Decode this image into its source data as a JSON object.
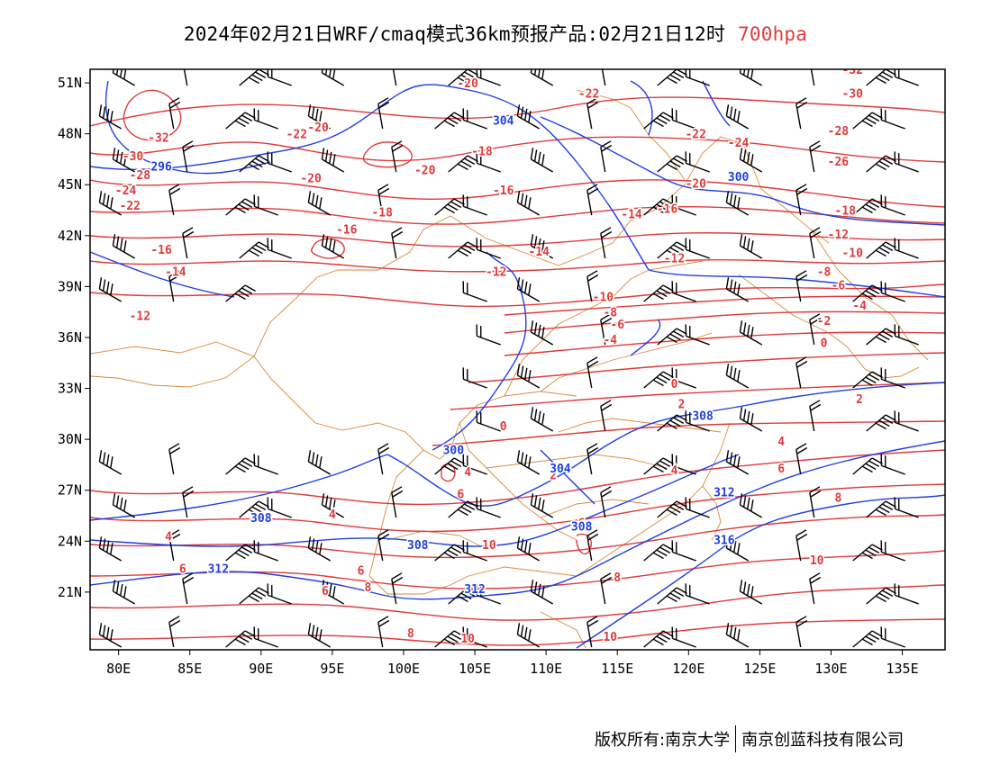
{
  "header": {
    "title": "2024年02月21日WRF/cmaq模式36km预报产品:02月21日12时",
    "level": "700hpa"
  },
  "map": {
    "lon_range": [
      78,
      138
    ],
    "lat_range": [
      17.6,
      51.8
    ],
    "lon_ticks": [
      "80E",
      "85E",
      "90E",
      "95E",
      "100E",
      "105E",
      "110E",
      "115E",
      "120E",
      "125E",
      "130E",
      "135E"
    ],
    "lat_ticks": [
      "51N",
      "48N",
      "45N",
      "42N",
      "39N",
      "36N",
      "33N",
      "30N",
      "27N",
      "24N",
      "21N"
    ],
    "height_contour_color": "#1f3fe0",
    "temperature_contour_color": "#e03a3a",
    "boundary_color": "#d98a3a",
    "height_labels": [
      {
        "text": "304",
        "lon": 107,
        "lat": 48.8
      },
      {
        "text": "300",
        "lon": 123.5,
        "lat": 45.5
      },
      {
        "text": "296",
        "lon": 83,
        "lat": 46.1
      },
      {
        "text": "300",
        "lon": 103.5,
        "lat": 29.4
      },
      {
        "text": "304",
        "lon": 111,
        "lat": 28.3
      },
      {
        "text": "308",
        "lon": 121,
        "lat": 31.4
      },
      {
        "text": "312",
        "lon": 122.5,
        "lat": 26.9
      },
      {
        "text": "308",
        "lon": 90,
        "lat": 25.4
      },
      {
        "text": "308",
        "lon": 112.5,
        "lat": 24.9
      },
      {
        "text": "308",
        "lon": 101,
        "lat": 23.8
      },
      {
        "text": "316",
        "lon": 122.5,
        "lat": 24.1
      },
      {
        "text": "312",
        "lon": 87,
        "lat": 22.4
      },
      {
        "text": "312",
        "lon": 105,
        "lat": 21.2
      }
    ],
    "temperature_labels": [
      {
        "text": "-32",
        "lon": 82.8,
        "lat": 47.8
      },
      {
        "text": "-30",
        "lon": 81,
        "lat": 46.7
      },
      {
        "text": "-28",
        "lon": 81.5,
        "lat": 45.6
      },
      {
        "text": "-24",
        "lon": 80.5,
        "lat": 44.7
      },
      {
        "text": "-22",
        "lon": 80.8,
        "lat": 43.8
      },
      {
        "text": "-22",
        "lon": 92.5,
        "lat": 48.0
      },
      {
        "text": "-20",
        "lon": 94,
        "lat": 48.4
      },
      {
        "text": "-20",
        "lon": 104.5,
        "lat": 51.0
      },
      {
        "text": "-22",
        "lon": 113,
        "lat": 50.4
      },
      {
        "text": "-18",
        "lon": 105.5,
        "lat": 47.0
      },
      {
        "text": "-20",
        "lon": 101.5,
        "lat": 45.9
      },
      {
        "text": "-20",
        "lon": 93.5,
        "lat": 45.4
      },
      {
        "text": "-16",
        "lon": 107,
        "lat": 44.7
      },
      {
        "text": "-18",
        "lon": 98.5,
        "lat": 43.4
      },
      {
        "text": "-16",
        "lon": 96,
        "lat": 42.4
      },
      {
        "text": "-16",
        "lon": 83,
        "lat": 41.2
      },
      {
        "text": "-14",
        "lon": 84,
        "lat": 39.9
      },
      {
        "text": "-12",
        "lon": 81.5,
        "lat": 37.3
      },
      {
        "text": "-22",
        "lon": 120.5,
        "lat": 48.0
      },
      {
        "text": "-24",
        "lon": 123.5,
        "lat": 47.5
      },
      {
        "text": "-20",
        "lon": 120.5,
        "lat": 45.1
      },
      {
        "text": "-16",
        "lon": 118.5,
        "lat": 43.6
      },
      {
        "text": "-14",
        "lon": 116,
        "lat": 43.3
      },
      {
        "text": "-14",
        "lon": 109.5,
        "lat": 41.1
      },
      {
        "text": "-12",
        "lon": 106.5,
        "lat": 39.9
      },
      {
        "text": "-12",
        "lon": 119,
        "lat": 40.7
      },
      {
        "text": "-32",
        "lon": 131.5,
        "lat": 51.8
      },
      {
        "text": "-30",
        "lon": 131.5,
        "lat": 50.4
      },
      {
        "text": "-28",
        "lon": 130.5,
        "lat": 48.2
      },
      {
        "text": "-26",
        "lon": 130.5,
        "lat": 46.4
      },
      {
        "text": "-18",
        "lon": 131,
        "lat": 43.5
      },
      {
        "text": "-12",
        "lon": 130.5,
        "lat": 42.1
      },
      {
        "text": "-10",
        "lon": 131.5,
        "lat": 41.0
      },
      {
        "text": "-8",
        "lon": 129.5,
        "lat": 39.9
      },
      {
        "text": "-6",
        "lon": 130.5,
        "lat": 39.1
      },
      {
        "text": "-4",
        "lon": 132,
        "lat": 37.9
      },
      {
        "text": "-2",
        "lon": 129.5,
        "lat": 37.0
      },
      {
        "text": "0",
        "lon": 129.5,
        "lat": 35.7
      },
      {
        "text": "2",
        "lon": 132,
        "lat": 32.4
      },
      {
        "text": "-10",
        "lon": 114,
        "lat": 38.4
      },
      {
        "text": "-8",
        "lon": 114.5,
        "lat": 37.5
      },
      {
        "text": "-6",
        "lon": 115,
        "lat": 36.8
      },
      {
        "text": "-4",
        "lon": 114.5,
        "lat": 35.9
      },
      {
        "text": "0",
        "lon": 119,
        "lat": 33.3
      },
      {
        "text": "2",
        "lon": 119.5,
        "lat": 32.1
      },
      {
        "text": "0",
        "lon": 107,
        "lat": 30.8
      },
      {
        "text": "4",
        "lon": 104.5,
        "lat": 28.1
      },
      {
        "text": "6",
        "lon": 104,
        "lat": 26.8
      },
      {
        "text": "2",
        "lon": 110.5,
        "lat": 27.9
      },
      {
        "text": "4",
        "lon": 119,
        "lat": 28.2
      },
      {
        "text": "4",
        "lon": 126.5,
        "lat": 29.9
      },
      {
        "text": "6",
        "lon": 126.5,
        "lat": 28.3
      },
      {
        "text": "8",
        "lon": 130.5,
        "lat": 26.6
      },
      {
        "text": "4",
        "lon": 95,
        "lat": 25.6
      },
      {
        "text": "4",
        "lon": 83.5,
        "lat": 24.3
      },
      {
        "text": "6",
        "lon": 112.5,
        "lat": 25.1
      },
      {
        "text": "10",
        "lon": 106,
        "lat": 23.8
      },
      {
        "text": "6",
        "lon": 84.5,
        "lat": 22.4
      },
      {
        "text": "6",
        "lon": 97,
        "lat": 22.3
      },
      {
        "text": "8",
        "lon": 97.5,
        "lat": 21.3
      },
      {
        "text": "6",
        "lon": 94.5,
        "lat": 21.1
      },
      {
        "text": "8",
        "lon": 100.5,
        "lat": 18.6
      },
      {
        "text": "8",
        "lon": 115,
        "lat": 21.9
      },
      {
        "text": "10",
        "lon": 104.5,
        "lat": 18.3
      },
      {
        "text": "10",
        "lon": 114.5,
        "lat": 18.4
      },
      {
        "text": "10",
        "lon": 129,
        "lat": 22.9
      }
    ]
  },
  "footer": {
    "copyright": "版权所有:南京大学",
    "company": "南京创蓝科技有限公司"
  }
}
